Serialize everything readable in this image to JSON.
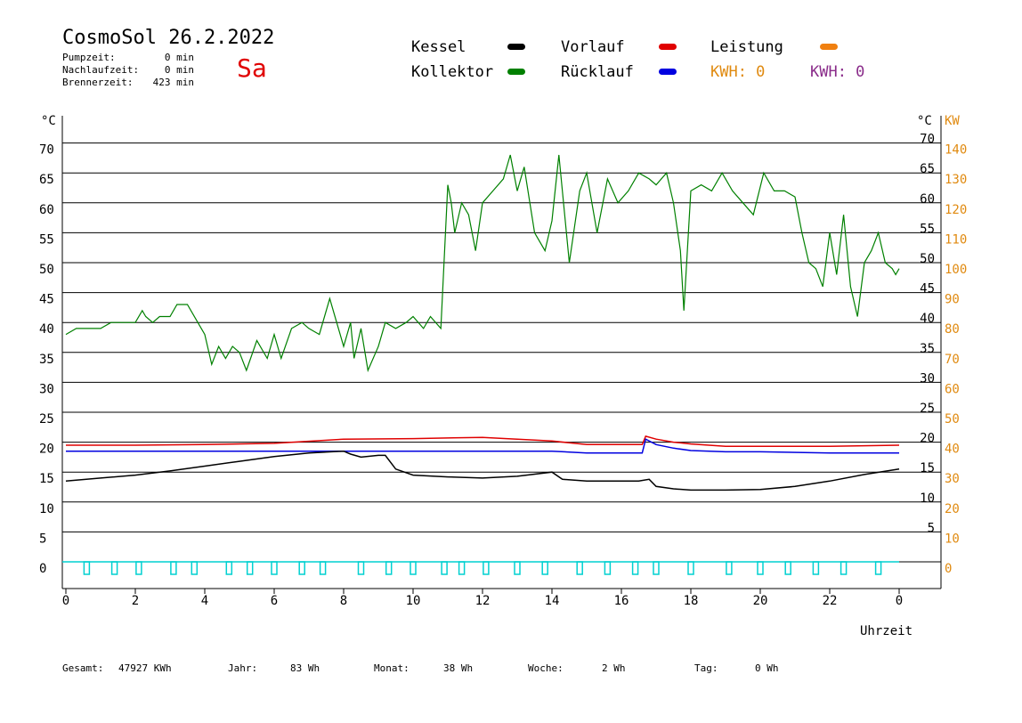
{
  "header": {
    "title": "CosmoSol 26.2.2022",
    "day": "Sa",
    "pumpzeit_label": "Pumpzeit:",
    "pumpzeit_value": "0 min",
    "nachlaufzeit_label": "Nachlaufzeit:",
    "nachlaufzeit_value": "0 min",
    "brennerzeit_label": "Brennerzeit:",
    "brennerzeit_value": "423 min"
  },
  "legend": {
    "kessel": "Kessel",
    "kollektor": "Kollektor",
    "vorlauf": "Vorlauf",
    "ruecklauf": "Rücklauf",
    "leistung": "Leistung",
    "kwh1": "KWH: 0",
    "kwh2": "KWH: 0",
    "colors": {
      "kessel": "#000000",
      "kollektor": "#008000",
      "vorlauf": "#e00000",
      "ruecklauf": "#0000e0",
      "leistung": "#f08010",
      "pump": "#00d0d0"
    }
  },
  "axes": {
    "left_unit": "°C",
    "right_unit": "°C",
    "right_unit2": "KW",
    "xlabel": "Uhrzeit"
  },
  "footer": {
    "gesamt_label": "Gesamt:",
    "gesamt_value": "47927 KWh",
    "jahr_label": "Jahr:",
    "jahr_value": "83 Wh",
    "monat_label": "Monat:",
    "monat_value": "38 Wh",
    "woche_label": "Woche:",
    "woche_value": "2 Wh",
    "tag_label": "Tag:",
    "tag_value": "0 Wh"
  },
  "chart_data": {
    "type": "line",
    "xlim": [
      0,
      24
    ],
    "ylim": [
      -5,
      75
    ],
    "y2lim": [
      -10,
      150
    ],
    "x_ticks": [
      "0",
      "2",
      "4",
      "6",
      "8",
      "10",
      "12",
      "14",
      "16",
      "18",
      "20",
      "22",
      "0"
    ],
    "y_ticks_left": [
      0,
      5,
      10,
      15,
      20,
      25,
      30,
      35,
      40,
      45,
      50,
      55,
      60,
      65,
      70
    ],
    "y_ticks_right": [
      5,
      10,
      15,
      20,
      25,
      30,
      35,
      40,
      45,
      50,
      55,
      60,
      65,
      70
    ],
    "y2_ticks": [
      0,
      10,
      20,
      30,
      40,
      50,
      60,
      70,
      80,
      90,
      100,
      110,
      120,
      130,
      140
    ],
    "grid": true,
    "series": [
      {
        "name": "Kollektor",
        "x": [
          0,
          0.3,
          0.5,
          1,
          1.3,
          1.7,
          2,
          2.2,
          2.3,
          2.5,
          2.7,
          3,
          3.2,
          3.5,
          3.8,
          4,
          4.2,
          4.4,
          4.6,
          4.8,
          5,
          5.2,
          5.5,
          5.8,
          6,
          6.2,
          6.5,
          6.8,
          7,
          7.3,
          7.6,
          7.8,
          7.9,
          8,
          8.2,
          8.3,
          8.5,
          8.7,
          9,
          9.2,
          9.5,
          9.8,
          10,
          10.3,
          10.5,
          10.8,
          11,
          11.1,
          11.2,
          11.4,
          11.6,
          11.8,
          12,
          12.3,
          12.6,
          12.8,
          13,
          13.2,
          13.5,
          13.8,
          14,
          14.2,
          14.5,
          14.8,
          15,
          15.3,
          15.6,
          15.9,
          16.2,
          16.5,
          16.8,
          17,
          17.3,
          17.5,
          17.7,
          17.8,
          18,
          18.3,
          18.6,
          18.9,
          19.2,
          19.5,
          19.8,
          20.1,
          20.4,
          20.7,
          21,
          21.2,
          21.4,
          21.6,
          21.8,
          22,
          22.2,
          22.4,
          22.6,
          22.8,
          23,
          23.2,
          23.4,
          23.6,
          23.8,
          23.9,
          24
        ],
        "values": [
          38,
          39,
          39,
          39,
          40,
          40,
          40,
          42,
          41,
          40,
          41,
          41,
          43,
          43,
          40,
          38,
          33,
          36,
          34,
          36,
          35,
          32,
          37,
          34,
          38,
          34,
          39,
          40,
          39,
          38,
          44,
          40,
          38,
          36,
          40,
          34,
          39,
          32,
          36,
          40,
          39,
          40,
          41,
          39,
          41,
          39,
          63,
          60,
          55,
          60,
          58,
          52,
          60,
          62,
          64,
          68,
          62,
          66,
          55,
          52,
          57,
          68,
          50,
          62,
          65,
          55,
          64,
          60,
          62,
          65,
          64,
          63,
          65,
          60,
          52,
          42,
          62,
          63,
          62,
          65,
          62,
          60,
          58,
          65,
          62,
          62,
          61,
          55,
          50,
          49,
          46,
          55,
          48,
          58,
          46,
          41,
          50,
          52,
          55,
          50,
          49,
          48,
          49
        ]
      },
      {
        "name": "Vorlauf",
        "x": [
          0,
          2,
          4,
          6,
          8,
          10,
          12,
          14,
          15,
          16,
          16.6,
          16.7,
          17,
          17.5,
          18,
          19,
          20,
          22,
          24
        ],
        "values": [
          19.5,
          19.5,
          19.6,
          19.8,
          20.5,
          20.6,
          20.8,
          20.2,
          19.6,
          19.6,
          19.6,
          21.0,
          20.5,
          20.0,
          19.7,
          19.3,
          19.3,
          19.3,
          19.5
        ]
      },
      {
        "name": "Rücklauf",
        "x": [
          0,
          2,
          4,
          6,
          8,
          10,
          12,
          14,
          15,
          16,
          16.6,
          16.7,
          17,
          17.5,
          18,
          19,
          20,
          22,
          24
        ],
        "values": [
          18.5,
          18.5,
          18.5,
          18.5,
          18.5,
          18.5,
          18.5,
          18.5,
          18.2,
          18.2,
          18.2,
          20.5,
          19.6,
          19.0,
          18.6,
          18.4,
          18.4,
          18.2,
          18.2
        ]
      },
      {
        "name": "Kessel",
        "x": [
          0,
          1,
          2,
          3,
          4,
          5,
          6,
          7,
          8,
          8.2,
          8.5,
          9,
          9.2,
          9.5,
          10,
          11,
          12,
          13,
          14,
          14.3,
          15,
          16,
          16.5,
          16.8,
          17,
          17.5,
          18,
          19,
          20,
          21,
          22,
          23,
          24
        ],
        "values": [
          13.5,
          14,
          14.5,
          15.2,
          16,
          16.8,
          17.6,
          18.2,
          18.5,
          18,
          17.5,
          17.8,
          17.8,
          15.5,
          14.5,
          14.2,
          14,
          14.3,
          15,
          13.8,
          13.5,
          13.5,
          13.5,
          13.8,
          12.6,
          12.2,
          12,
          12,
          12.1,
          12.6,
          13.5,
          14.6,
          15.5
        ]
      },
      {
        "name": "Pumpe",
        "x": [
          0.6,
          1.4,
          2.1,
          3.1,
          3.7,
          4.7,
          5.3,
          6,
          6.8,
          7.4,
          8.5,
          9.3,
          10,
          10.9,
          11.4,
          12.1,
          13,
          13.8,
          14.8,
          15.6,
          16.4,
          17,
          18,
          19.1,
          20,
          20.8,
          21.6,
          22.4,
          23.4
        ],
        "values": [
          0,
          0,
          0,
          0,
          0,
          0,
          0,
          0,
          0,
          0,
          0,
          0,
          0,
          0,
          0,
          0,
          0,
          0,
          0,
          0,
          0,
          0,
          0,
          0,
          0,
          0,
          0,
          0,
          0
        ]
      }
    ]
  }
}
